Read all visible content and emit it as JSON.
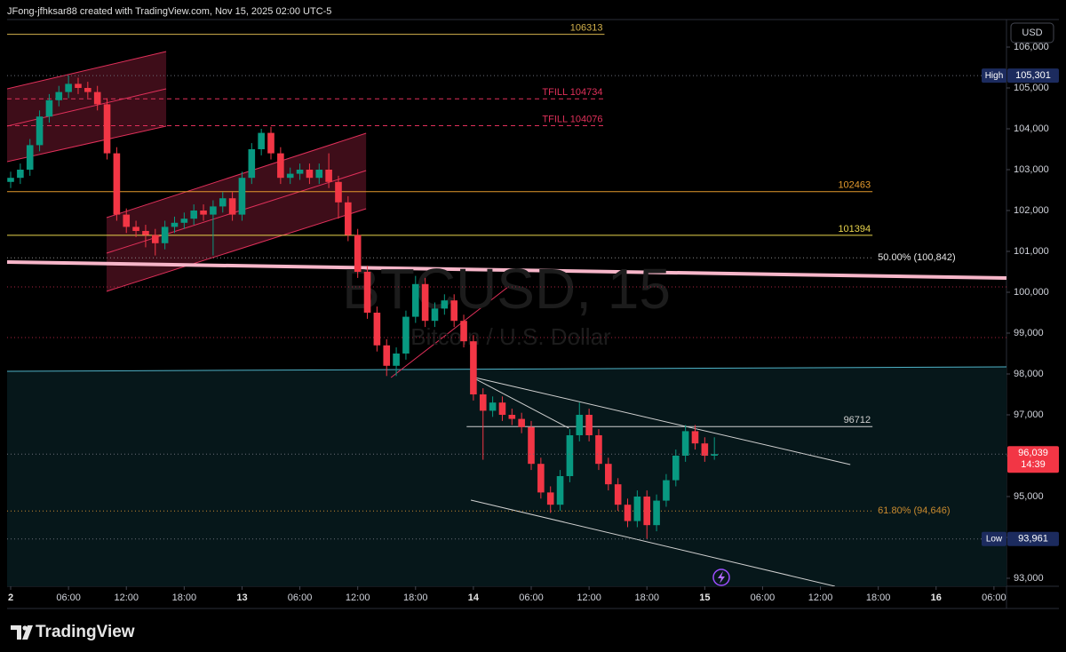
{
  "header": "JFong-jfhksar88 created with TradingView.com, Nov 15, 2025 02:00 UTC-5",
  "footer_logo": "TradingView",
  "chart_data": {
    "type": "candlestick",
    "watermark": "BTCUSD, 15",
    "watermark_subtitle": "Bitcoin / U.S. Dollar",
    "y_axis_label": "USD",
    "up_color": "#089981",
    "down_color": "#f23645",
    "grid": false,
    "xlim": [
      -0.37,
      103.3
    ],
    "ylim": [
      92804,
      106674
    ],
    "xticks": [
      {
        "value": 0,
        "label": "2",
        "bold": true
      },
      {
        "value": 6,
        "label": "06:00"
      },
      {
        "value": 12,
        "label": "12:00"
      },
      {
        "value": 18,
        "label": "18:00"
      },
      {
        "value": 24,
        "label": "13",
        "bold": true
      },
      {
        "value": 30,
        "label": "06:00"
      },
      {
        "value": 36,
        "label": "12:00"
      },
      {
        "value": 42,
        "label": "18:00"
      },
      {
        "value": 48,
        "label": "14",
        "bold": true
      },
      {
        "value": 54,
        "label": "06:00"
      },
      {
        "value": 60,
        "label": "12:00"
      },
      {
        "value": 66,
        "label": "18:00"
      },
      {
        "value": 72,
        "label": "15",
        "bold": true
      },
      {
        "value": 78,
        "label": "06:00"
      },
      {
        "value": 84,
        "label": "12:00"
      },
      {
        "value": 90,
        "label": "18:00"
      },
      {
        "value": 96,
        "label": "16",
        "bold": true
      },
      {
        "value": 102,
        "label": "06:00"
      }
    ],
    "yticks": [
      {
        "value": 93000,
        "label": "93,000"
      },
      {
        "value": 94000,
        "label": "94,000"
      },
      {
        "value": 95000,
        "label": "95,000"
      },
      {
        "value": 96000,
        "label": "96,000"
      },
      {
        "value": 97000,
        "label": "97,000"
      },
      {
        "value": 98000,
        "label": "98,000"
      },
      {
        "value": 99000,
        "label": "99,000"
      },
      {
        "value": 100000,
        "label": "100,000"
      },
      {
        "value": 101000,
        "label": "101,000"
      },
      {
        "value": 102000,
        "label": "102,000"
      },
      {
        "value": 103000,
        "label": "103,000"
      },
      {
        "value": 104000,
        "label": "104,000"
      },
      {
        "value": 105000,
        "label": "105,000"
      },
      {
        "value": 106000,
        "label": "106,000"
      }
    ],
    "x": [
      0,
      1,
      2,
      3,
      4,
      5,
      6,
      7,
      8,
      9,
      10,
      11,
      12,
      13,
      14,
      15,
      16,
      17,
      18,
      19,
      20,
      21,
      22,
      23,
      24,
      25,
      26,
      27,
      28,
      29,
      30,
      31,
      32,
      33,
      34,
      35,
      36,
      37,
      38,
      39,
      40,
      41,
      42,
      43,
      44,
      45,
      46,
      47,
      48,
      49,
      50,
      51,
      52,
      53,
      54,
      55,
      56,
      57,
      58,
      59,
      60,
      61,
      62,
      63,
      64,
      65,
      66,
      67,
      68,
      69,
      70,
      71,
      72,
      73
    ],
    "candles": [
      [
        102700,
        102950,
        102550,
        102800
      ],
      [
        102800,
        103150,
        102650,
        103000
      ],
      [
        103000,
        103750,
        102850,
        103600
      ],
      [
        103600,
        104450,
        103450,
        104300
      ],
      [
        104300,
        104850,
        104150,
        104700
      ],
      [
        104700,
        105050,
        104550,
        104900
      ],
      [
        104900,
        105301,
        104750,
        105100
      ],
      [
        105100,
        105250,
        104850,
        105000
      ],
      [
        105000,
        105150,
        104750,
        104900
      ],
      [
        104900,
        105050,
        104450,
        104600
      ],
      [
        104600,
        104750,
        103250,
        103400
      ],
      [
        103400,
        103550,
        101750,
        101900
      ],
      [
        101900,
        102050,
        101450,
        101600
      ],
      [
        101600,
        101750,
        101350,
        101500
      ],
      [
        101500,
        101650,
        101100,
        101400
      ],
      [
        101400,
        101550,
        100900,
        101200
      ],
      [
        101200,
        101750,
        101050,
        101600
      ],
      [
        101600,
        101850,
        101450,
        101700
      ],
      [
        101700,
        101950,
        101550,
        101800
      ],
      [
        101800,
        102150,
        101650,
        102000
      ],
      [
        102000,
        102150,
        101750,
        101900
      ],
      [
        101900,
        102250,
        100900,
        102100
      ],
      [
        102100,
        102450,
        101950,
        102300
      ],
      [
        102300,
        102450,
        101750,
        101900
      ],
      [
        101900,
        102950,
        101750,
        102800
      ],
      [
        102800,
        103650,
        102650,
        103500
      ],
      [
        103500,
        104000,
        103350,
        103900
      ],
      [
        103900,
        104050,
        103250,
        103400
      ],
      [
        103400,
        103550,
        102650,
        102800
      ],
      [
        102800,
        103050,
        102650,
        102900
      ],
      [
        102900,
        103150,
        102750,
        103000
      ],
      [
        103000,
        103150,
        102650,
        102800
      ],
      [
        102800,
        103150,
        102650,
        103000
      ],
      [
        103000,
        103400,
        102550,
        102700
      ],
      [
        102700,
        102850,
        101800,
        102200
      ],
      [
        102200,
        102350,
        101250,
        101400
      ],
      [
        101400,
        101550,
        100350,
        100500
      ],
      [
        100500,
        100650,
        99350,
        99500
      ],
      [
        99500,
        99650,
        98550,
        98700
      ],
      [
        98700,
        98850,
        97950,
        98200
      ],
      [
        98200,
        98650,
        97950,
        98500
      ],
      [
        98500,
        99550,
        98350,
        99400
      ],
      [
        99400,
        100400,
        99250,
        100200
      ],
      [
        100200,
        100350,
        99150,
        99300
      ],
      [
        99300,
        99750,
        99150,
        99600
      ],
      [
        99600,
        99950,
        99450,
        99800
      ],
      [
        99800,
        99950,
        99150,
        99300
      ],
      [
        99300,
        99450,
        98650,
        98800
      ],
      [
        98800,
        98950,
        97350,
        97500
      ],
      [
        97500,
        97650,
        95900,
        97100
      ],
      [
        97100,
        97450,
        96950,
        97300
      ],
      [
        97300,
        97450,
        96850,
        97000
      ],
      [
        97000,
        97150,
        96750,
        96900
      ],
      [
        96900,
        97050,
        96550,
        96700
      ],
      [
        96700,
        96850,
        95650,
        95800
      ],
      [
        95800,
        95950,
        94950,
        95100
      ],
      [
        95100,
        95250,
        94600,
        94800
      ],
      [
        94800,
        95650,
        94650,
        95500
      ],
      [
        95500,
        96650,
        95350,
        96500
      ],
      [
        96500,
        97300,
        96350,
        97000
      ],
      [
        97000,
        97150,
        96350,
        96500
      ],
      [
        96500,
        96650,
        95650,
        95800
      ],
      [
        95800,
        95950,
        95150,
        95300
      ],
      [
        95300,
        95450,
        94650,
        94800
      ],
      [
        94800,
        94950,
        94250,
        94400
      ],
      [
        94400,
        95150,
        94250,
        95000
      ],
      [
        95000,
        95150,
        93961,
        94300
      ],
      [
        94300,
        95050,
        94150,
        94900
      ],
      [
        94900,
        95550,
        94750,
        95400
      ],
      [
        95400,
        96150,
        95250,
        96000
      ],
      [
        96000,
        96750,
        95850,
        96600
      ],
      [
        96600,
        96750,
        96150,
        96300
      ],
      [
        96300,
        96450,
        95850,
        96000
      ],
      [
        96000,
        96450,
        95900,
        96039
      ]
    ],
    "levels": [
      {
        "value": 106313,
        "color": "#d4b24c",
        "x_range": [
          -0.37,
          61.6
        ],
        "style": "solid",
        "label_pos": "above"
      },
      {
        "value": 104734,
        "label": "TFILL 104734",
        "color": "#e0305a",
        "x_range": [
          -0.37,
          61.6
        ],
        "style": "dashed",
        "label_pos": "above"
      },
      {
        "value": 104076,
        "label": "TFILL 104076",
        "color": "#e0305a",
        "x_range": [
          -0.37,
          61.6
        ],
        "style": "dashed",
        "label_pos": "above"
      },
      {
        "value": 102463,
        "color": "#e39a2d",
        "x_range": [
          -0.37,
          89.4
        ],
        "style": "solid",
        "label_pos": "above"
      },
      {
        "value": 101394,
        "color": "#e8d44d",
        "x_range": [
          -0.37,
          89.4
        ],
        "style": "solid",
        "label_pos": "above"
      },
      {
        "value": 100842,
        "label": "50.00% (100,842)",
        "color": "#8a8a8a",
        "label_color": "#e6e6e6",
        "x_range": [
          -0.37,
          89.4
        ],
        "style": "dotted",
        "label_pos": "right"
      },
      {
        "value": 96712,
        "color": "#cfcfcf",
        "x_range": [
          47.3,
          89.4
        ],
        "style": "solid",
        "label_pos": "above"
      },
      {
        "value": 94646,
        "label": "61.80% (94,646)",
        "color": "#c98a2e",
        "x_range": [
          -0.37,
          89.4
        ],
        "style": "dotted",
        "label_pos": "right"
      }
    ],
    "guides": [
      {
        "value": 100130,
        "color": "#a8243f"
      },
      {
        "value": 98891,
        "color": "#a8243f"
      }
    ],
    "badges": [
      {
        "name": "High",
        "value": 105301,
        "label": "105,301",
        "color": "#1c2b5e"
      },
      {
        "name": "Low",
        "value": 93961,
        "label": "93,961",
        "color": "#1c2b5e"
      },
      {
        "value": 96039,
        "label": "96,039",
        "countdown": "14:39",
        "color": "#f23645"
      }
    ],
    "channels": [
      {
        "color": "#e0305a",
        "lines": [
          [
            [
              -0.37,
              104978
            ],
            [
              16.13,
              105891
            ]
          ],
          [
            [
              -0.37,
              104065
            ],
            [
              16.13,
              104978
            ]
          ],
          [
            [
              -0.37,
              103196
            ],
            [
              16.13,
              104065
            ]
          ]
        ]
      },
      {
        "color": "#e0305a",
        "lines": [
          [
            [
              9.95,
              101826
            ],
            [
              36.87,
              103891
            ]
          ],
          [
            [
              9.95,
              100957
            ],
            [
              36.87,
              102978
            ]
          ],
          [
            [
              9.95,
              100022
            ],
            [
              36.87,
              102043
            ]
          ]
        ]
      }
    ],
    "boxes": [
      {
        "x": [
          47.74,
          87.1
        ],
        "y": [
          96712,
          92804
        ],
        "color": "#3a4446"
      }
    ],
    "trendlines": [
      {
        "points": [
          [
            -0.37,
            100739
          ],
          [
            103.3,
            100348
          ]
        ],
        "color": "#f7b6c9",
        "width": 4
      },
      {
        "points": [
          [
            -0.37,
            98065
          ],
          [
            103.3,
            98174
          ]
        ],
        "color": "#4fb3c8",
        "width": 1,
        "fill_below": "#06171a"
      },
      {
        "points": [
          [
            39.45,
            97913
          ],
          [
            51.6,
            100130
          ]
        ],
        "color": "#e0305a",
        "width": 1
      },
      {
        "points": [
          [
            47.74,
            97935
          ],
          [
            87.1,
            95783
          ]
        ],
        "color": "#d0d0d0",
        "width": 1
      },
      {
        "points": [
          [
            47.74,
            97935
          ],
          [
            57.9,
            96674
          ]
        ],
        "color": "#d0d0d0",
        "width": 1
      },
      {
        "points": [
          [
            47.74,
            94913
          ],
          [
            85.5,
            92804
          ]
        ],
        "color": "#d0d0d0",
        "width": 1
      }
    ]
  }
}
